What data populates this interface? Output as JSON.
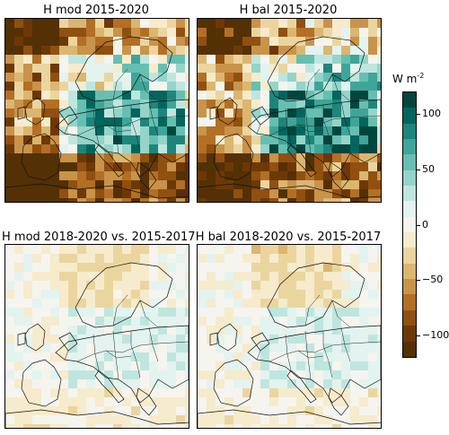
{
  "panels": [
    {
      "title": "H mod 2015-2020",
      "variant": "strong-mod"
    },
    {
      "title": "H bal 2015-2020",
      "variant": "strong-bal"
    },
    {
      "title": "H mod 2018-2020 vs. 2015-2017",
      "variant": "weak-mod"
    },
    {
      "title": "H bal 2018-2020 vs. 2015-2017",
      "variant": "weak-bal"
    }
  ],
  "colorbar": {
    "unit_base": "W m",
    "unit_exp": "-2",
    "tick_labels": [
      "100",
      "50",
      "0",
      "−50",
      "−100"
    ],
    "tick_values": [
      100,
      50,
      0,
      -50,
      -100
    ],
    "range": [
      -120,
      120
    ],
    "colors_top_to_bottom": [
      "#01463d",
      "#02665e",
      "#1f857b",
      "#3fa598",
      "#66bfb2",
      "#94d4c9",
      "#bee6de",
      "#e3f3ef",
      "#f5f4ef",
      "#f6ebcc",
      "#ebd59f",
      "#dbb670",
      "#c9934a",
      "#b36f24",
      "#905010",
      "#6e3806",
      "#543005"
    ]
  }
}
